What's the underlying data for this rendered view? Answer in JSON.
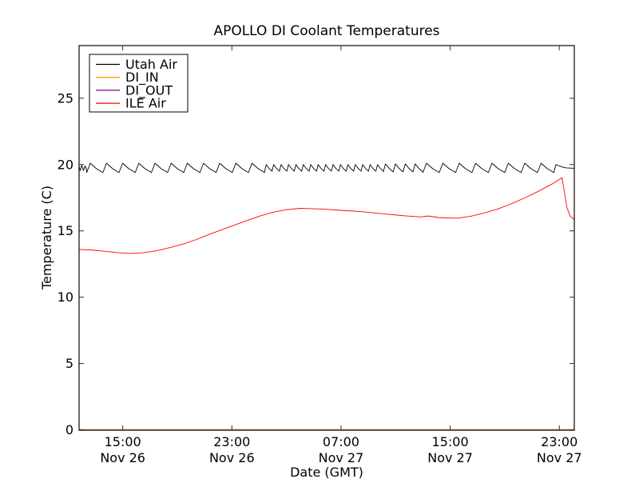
{
  "figure": {
    "background": "#ffffff",
    "frame_color": "#2b2b2b",
    "tick_color": "#2b2b2b"
  },
  "chart_data": {
    "type": "line",
    "title": "APOLLO DI Coolant Temperatures",
    "xlabel": "Date (GMT)",
    "ylabel": "Temperature (C)",
    "ylim": [
      0,
      29
    ],
    "y_ticks": [
      0,
      5,
      10,
      15,
      20,
      25
    ],
    "x_unit": "hours relative to 15:00 Nov 26 GMT",
    "xlim_hours": [
      -3.2,
      33.1
    ],
    "x_ticks": [
      {
        "h": 0,
        "time": "15:00",
        "date": "Nov 26"
      },
      {
        "h": 8,
        "time": "23:00",
        "date": "Nov 26"
      },
      {
        "h": 16,
        "time": "07:00",
        "date": "Nov 27"
      },
      {
        "h": 24,
        "time": "15:00",
        "date": "Nov 27"
      },
      {
        "h": 32,
        "time": "23:00",
        "date": "Nov 27"
      }
    ],
    "grid": false,
    "legend": {
      "position": "upper-left",
      "entries": [
        {
          "label": "Utah Air",
          "color": "#000000"
        },
        {
          "label": "DI_IN",
          "color": "#ffa500"
        },
        {
          "label": "DI_OUT",
          "color": "#800080"
        },
        {
          "label": "ILE Air",
          "color": "#ff0000"
        }
      ]
    },
    "series": [
      {
        "name": "Utah Air",
        "color": "#000000",
        "style": "thermostat-sawtooth",
        "lead_points": [
          [
            -3.2,
            19.9
          ],
          [
            -3.12,
            19.55
          ],
          [
            -3.0,
            19.95
          ],
          [
            -2.88,
            19.55
          ],
          [
            -2.76,
            19.9
          ],
          [
            -2.64,
            19.6
          ]
        ],
        "oscillation_segments": [
          {
            "start": -2.64,
            "end": 10.4,
            "period": 1.16,
            "low": 19.4,
            "high": 20.1
          },
          {
            "start": 10.4,
            "end": 19.1,
            "period": 0.55,
            "low": 19.5,
            "high": 20.0
          },
          {
            "start": 19.1,
            "end": 22.0,
            "period": 0.73,
            "low": 19.45,
            "high": 20.05
          },
          {
            "start": 22.0,
            "end": 31.6,
            "period": 1.2,
            "low": 19.4,
            "high": 20.1
          }
        ],
        "tail_points": [
          [
            31.6,
            19.4
          ],
          [
            31.75,
            20.0
          ],
          [
            32.1,
            19.85
          ],
          [
            32.5,
            19.75
          ],
          [
            33.1,
            19.72
          ]
        ]
      },
      {
        "name": "DI_IN",
        "color": "#ffa500",
        "style": "constant",
        "constant_value": 0
      },
      {
        "name": "DI_OUT",
        "color": "#800080",
        "style": "constant",
        "constant_value": 0
      },
      {
        "name": "ILE Air",
        "color": "#ff0000",
        "style": "points",
        "points": [
          [
            -3.2,
            13.6
          ],
          [
            -2.2,
            13.55
          ],
          [
            -1.2,
            13.45
          ],
          [
            -0.3,
            13.35
          ],
          [
            0.6,
            13.3
          ],
          [
            1.5,
            13.35
          ],
          [
            2.5,
            13.5
          ],
          [
            3.5,
            13.75
          ],
          [
            4.4,
            14.0
          ],
          [
            5.4,
            14.35
          ],
          [
            6.5,
            14.8
          ],
          [
            7.7,
            15.25
          ],
          [
            8.9,
            15.7
          ],
          [
            10.0,
            16.1
          ],
          [
            11.0,
            16.4
          ],
          [
            12.0,
            16.6
          ],
          [
            13.0,
            16.7
          ],
          [
            14.5,
            16.65
          ],
          [
            16.0,
            16.55
          ],
          [
            17.5,
            16.45
          ],
          [
            19.0,
            16.3
          ],
          [
            20.5,
            16.15
          ],
          [
            21.8,
            16.05
          ],
          [
            22.4,
            16.12
          ],
          [
            23.2,
            16.0
          ],
          [
            24.5,
            15.95
          ],
          [
            25.5,
            16.1
          ],
          [
            26.5,
            16.35
          ],
          [
            27.5,
            16.65
          ],
          [
            28.5,
            17.05
          ],
          [
            29.5,
            17.5
          ],
          [
            30.5,
            18.0
          ],
          [
            31.5,
            18.55
          ],
          [
            32.2,
            19.0
          ],
          [
            32.35,
            18.1
          ],
          [
            32.55,
            16.8
          ],
          [
            32.8,
            16.1
          ],
          [
            33.1,
            15.85
          ]
        ]
      }
    ]
  }
}
